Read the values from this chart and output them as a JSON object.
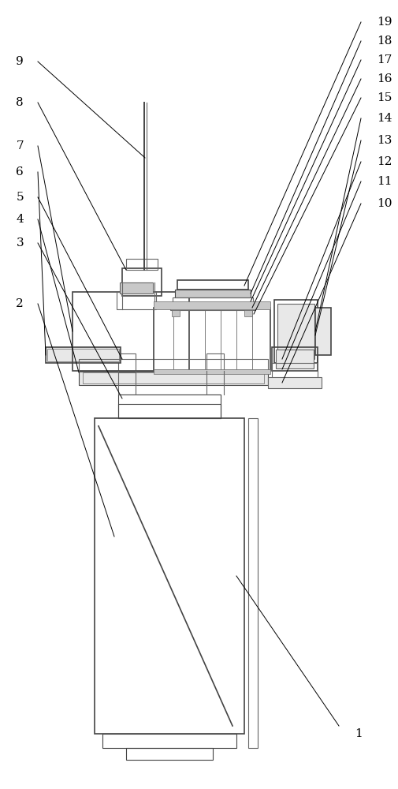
{
  "line_color": "#666666",
  "thick_color": "#444444",
  "gray_fill": "#c8c8c8",
  "light_fill": "#e8e8e8",
  "white": "#ffffff",
  "lw": 0.8,
  "tlw": 1.2
}
